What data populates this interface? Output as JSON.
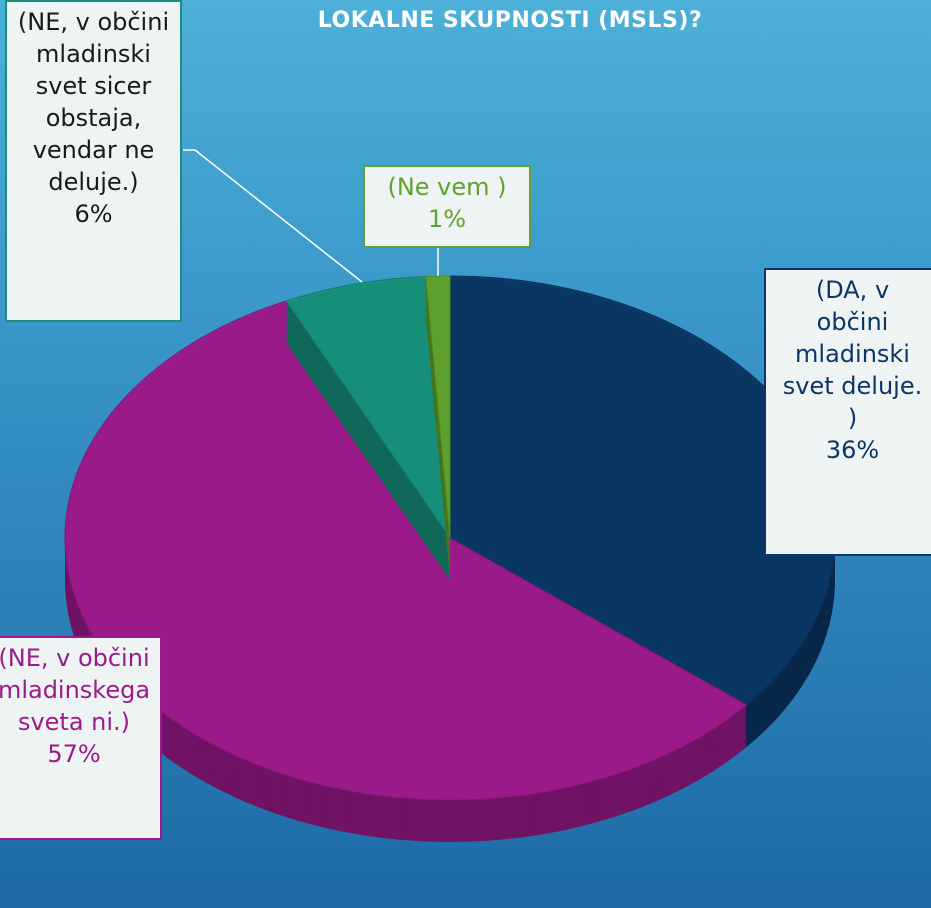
{
  "chart_data": {
    "type": "pie",
    "title": "LOKALNE SKUPNOSTI (MSLS)?",
    "categories": [
      "(DA, v občini mladinski svet deluje. )",
      "(NE, v občini mladinskega sveta ni.)",
      "(NE, v občini mladinski svet sicer obstaja, vendar ne deluje.)",
      "(Ne vem )"
    ],
    "values": [
      36,
      57,
      6,
      1
    ],
    "value_labels": [
      "36%",
      "57%",
      "6%",
      "1%"
    ],
    "colors": [
      "#0b3766",
      "#9c1a8c",
      "#17917c",
      "#5fa22e"
    ]
  }
}
